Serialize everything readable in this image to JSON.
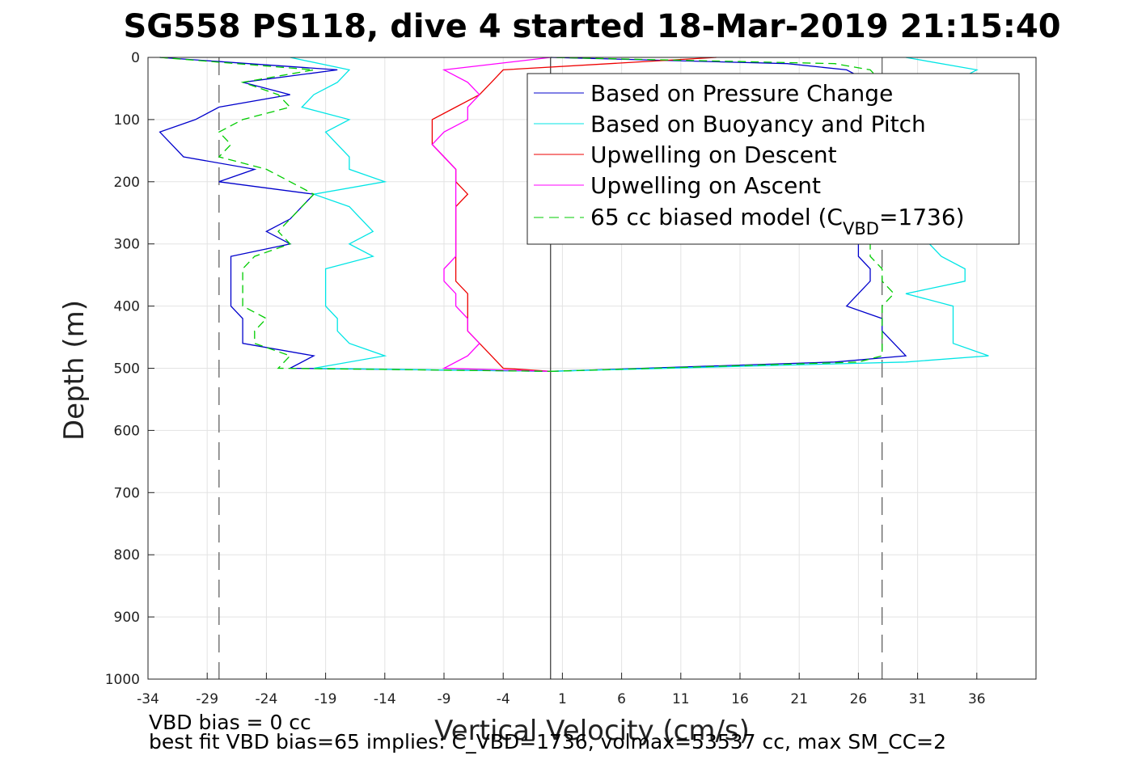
{
  "chart_data": {
    "type": "line",
    "title": "SG558 PS118, dive 4 started 18-Mar-2019 21:15:40",
    "xlabel": "Vertical Velocity (cm/s)",
    "ylabel": "Depth (m)",
    "xlim": [
      -34,
      41
    ],
    "ylim": [
      0,
      1000
    ],
    "y_reversed": true,
    "grid": true,
    "xticks": [
      -34,
      -29,
      -24,
      -19,
      -14,
      -9,
      -4,
      1,
      6,
      11,
      16,
      21,
      26,
      31,
      36
    ],
    "yticks": [
      0,
      100,
      200,
      300,
      400,
      500,
      600,
      700,
      800,
      900,
      1000
    ],
    "legend_position": "top-right",
    "legend": {
      "pressure": "Based on Pressure Change",
      "buoyancy": "Based on Buoyancy and Pitch",
      "descent": "Upwelling on Descent",
      "ascent": "Upwelling on Ascent",
      "model_prefix": "65 cc biased model (C",
      "model_sub": "VBD",
      "model_suffix": "=1736)"
    },
    "reference_lines": {
      "zero_x": 0,
      "dashed_x": [
        -28,
        28
      ]
    },
    "series": [
      {
        "key": "pressure",
        "color": "#0000cc",
        "style": "solid",
        "descent_depth": [
          0,
          20,
          40,
          60,
          80,
          100,
          120,
          140,
          160,
          180,
          200,
          220,
          240,
          260,
          280,
          300,
          320,
          340,
          360,
          380,
          400,
          420,
          440,
          460,
          480,
          500,
          505
        ],
        "descent_x": [
          -33,
          -18,
          -26,
          -22,
          -28,
          -30,
          -33,
          -32,
          -31,
          -25,
          -28,
          -20,
          -21,
          -22,
          -24,
          -22,
          -27,
          -27,
          -27,
          -27,
          -27,
          -26,
          -26,
          -26,
          -20,
          -22,
          0
        ],
        "ascent_depth": [
          505,
          490,
          480,
          460,
          440,
          420,
          400,
          380,
          360,
          340,
          320,
          300,
          200,
          100,
          40,
          20,
          10,
          0
        ],
        "ascent_x": [
          0,
          24,
          30,
          29,
          28,
          28,
          25,
          26,
          27,
          27,
          26,
          26,
          27,
          27,
          27,
          25,
          20,
          0
        ]
      },
      {
        "key": "buoyancy",
        "color": "#00e5e5",
        "style": "solid",
        "descent_depth": [
          0,
          20,
          40,
          60,
          80,
          100,
          120,
          140,
          160,
          180,
          200,
          220,
          240,
          260,
          280,
          300,
          320,
          340,
          360,
          380,
          400,
          420,
          440,
          460,
          480,
          500,
          505
        ],
        "descent_x": [
          -22,
          -17,
          -18,
          -20,
          -21,
          -17,
          -19,
          -18,
          -17,
          -17,
          -14,
          -20,
          -17,
          -16,
          -15,
          -17,
          -15,
          -19,
          -19,
          -19,
          -19,
          -18,
          -18,
          -17,
          -14,
          -20,
          0
        ],
        "ascent_depth": [
          505,
          490,
          480,
          460,
          440,
          420,
          400,
          380,
          360,
          340,
          320,
          300,
          200,
          150,
          100,
          70,
          40,
          20,
          0
        ],
        "ascent_x": [
          0,
          30,
          37,
          34,
          34,
          34,
          34,
          30,
          35,
          35,
          33,
          32,
          38,
          37,
          37,
          36,
          34,
          36,
          30
        ]
      },
      {
        "key": "descent",
        "color": "#ee0000",
        "style": "solid",
        "depth": [
          0,
          20,
          40,
          60,
          80,
          100,
          120,
          140,
          160,
          180,
          200,
          220,
          240,
          260,
          280,
          300,
          320,
          340,
          360,
          380,
          400,
          420,
          440,
          460,
          480,
          500,
          505
        ],
        "x": [
          14,
          -4,
          -5,
          -6,
          -8,
          -10,
          -10,
          -10,
          -9,
          -8,
          -8,
          -7,
          -8,
          -8,
          -8,
          -8,
          -8,
          -8,
          -8,
          -7,
          -7,
          -7,
          -7,
          -6,
          -5,
          -4,
          0
        ]
      },
      {
        "key": "ascent",
        "color": "#ff00ff",
        "style": "solid",
        "depth": [
          0,
          20,
          40,
          60,
          80,
          100,
          120,
          140,
          160,
          180,
          200,
          220,
          240,
          260,
          280,
          300,
          320,
          340,
          360,
          380,
          400,
          420,
          440,
          460,
          480,
          500,
          505
        ],
        "x": [
          0,
          -9,
          -7,
          -6,
          -7,
          -7,
          -9,
          -10,
          -9,
          -8,
          -8,
          -8,
          -8,
          -8,
          -8,
          -8,
          -8,
          -9,
          -9,
          -8,
          -8,
          -7,
          -7,
          -6,
          -7,
          -9,
          0
        ]
      },
      {
        "key": "model",
        "color": "#00cc00",
        "style": "dashed",
        "descent_depth": [
          0,
          20,
          40,
          60,
          80,
          100,
          120,
          140,
          160,
          180,
          200,
          220,
          240,
          260,
          280,
          300,
          320,
          340,
          360,
          380,
          400,
          420,
          440,
          460,
          480,
          500,
          505
        ],
        "descent_x": [
          -33,
          -20,
          -26,
          -23,
          -22,
          -26,
          -28,
          -27,
          -28,
          -24,
          -22,
          -20,
          -21,
          -22,
          -23,
          -22,
          -25,
          -26,
          -26,
          -26,
          -26,
          -24,
          -25,
          -25,
          -22,
          -23,
          0
        ],
        "ascent_depth": [
          505,
          490,
          480,
          460,
          440,
          420,
          400,
          380,
          360,
          340,
          320,
          300,
          200,
          100,
          40,
          20,
          10,
          0
        ],
        "ascent_x": [
          0,
          26,
          28,
          28,
          28,
          28,
          28,
          29,
          28,
          28,
          27,
          27,
          27,
          28,
          28,
          27,
          24,
          0
        ]
      }
    ]
  },
  "notes": {
    "line1": "VBD bias = 0 cc",
    "line2": "best fit VBD bias=65 implies: C_VBD=1736, volmax=53537 cc, max SM_CC=2"
  }
}
